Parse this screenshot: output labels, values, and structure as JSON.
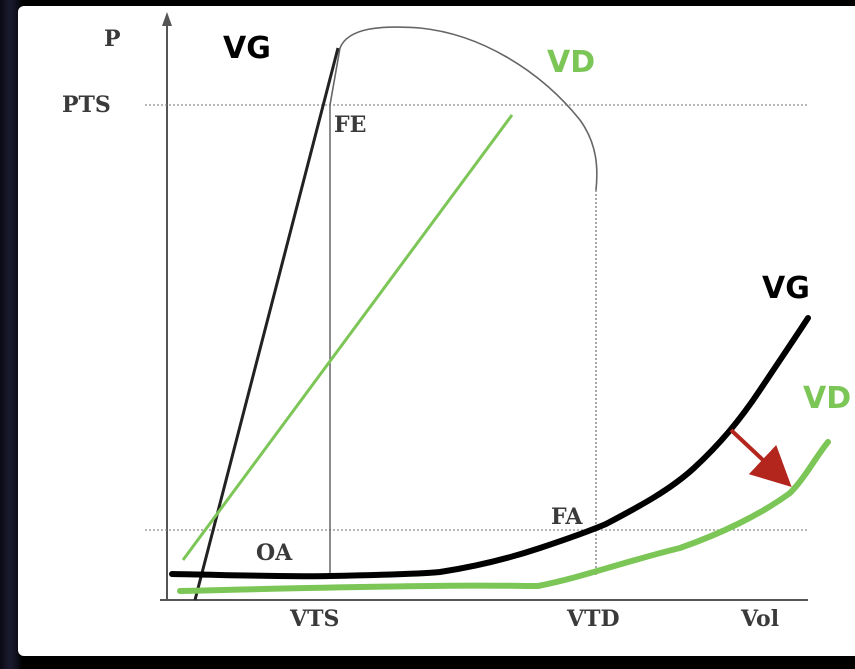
{
  "labels": {
    "p_axis": "P",
    "pts": "PTS",
    "fe": "FE",
    "fa": "FA",
    "oa": "OA",
    "vts": "VTS",
    "vtd": "VTD",
    "vol": "Vol",
    "vg_top": "VG",
    "vd_top": "VD",
    "vg_right": "VG",
    "vd_right": "VD"
  },
  "colors": {
    "vg": "#000000",
    "vd": "#7cc657",
    "arrow": "#b3261e",
    "axis": "#555555",
    "guide": "#8a8a8a"
  }
}
